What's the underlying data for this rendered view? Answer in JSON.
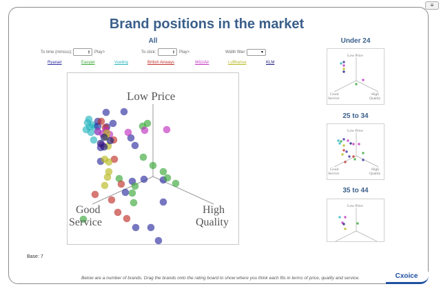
{
  "title": "Brand positions in the market",
  "all_label": "All",
  "controls": {
    "time_label": "To time (mmsss):",
    "click_label": "To click:",
    "play_label": "Play>",
    "width_label": "Width filter:"
  },
  "brands": [
    {
      "name": "Ryanair",
      "color": "#2e2ea0"
    },
    {
      "name": "Easyjet",
      "color": "#3aa83a"
    },
    {
      "name": "Vueling",
      "color": "#2ab5c0"
    },
    {
      "name": "British Airways",
      "color": "#c0302a"
    },
    {
      "name": "WizzAir",
      "color": "#c030c0"
    },
    {
      "name": "Lufthansa",
      "color": "#b8b820"
    },
    {
      "name": "KLM",
      "color": "#1a1a7a"
    }
  ],
  "axes": {
    "top": "Low Price",
    "left_line1": "Good",
    "left_line2": "Service",
    "right_line1": "High",
    "right_line2": "Quality"
  },
  "main_points": [
    {
      "b": 2,
      "x": -93,
      "y": -83
    },
    {
      "b": 2,
      "x": -95,
      "y": -78
    },
    {
      "b": 2,
      "x": -88,
      "y": -75
    },
    {
      "b": 2,
      "x": -97,
      "y": -68
    },
    {
      "b": 2,
      "x": -90,
      "y": -64
    },
    {
      "b": 2,
      "x": -84,
      "y": -72
    },
    {
      "b": 2,
      "x": -86,
      "y": -53
    },
    {
      "b": 2,
      "x": -80,
      "y": -65
    },
    {
      "b": 2,
      "x": -92,
      "y": -72
    },
    {
      "b": 0,
      "x": -68,
      "y": -93
    },
    {
      "b": 0,
      "x": -42,
      "y": -94
    },
    {
      "b": 0,
      "x": -80,
      "y": -80
    },
    {
      "b": 0,
      "x": -58,
      "y": -77
    },
    {
      "b": 0,
      "x": -67,
      "y": -72
    },
    {
      "b": 0,
      "x": -32,
      "y": -56
    },
    {
      "b": 0,
      "x": -26,
      "y": -45
    },
    {
      "b": 0,
      "x": -76,
      "y": -42
    },
    {
      "b": 0,
      "x": -13,
      "y": 4
    },
    {
      "b": 0,
      "x": -30,
      "y": 7
    },
    {
      "b": 0,
      "x": 15,
      "y": 5
    },
    {
      "b": 0,
      "x": -40,
      "y": 23
    },
    {
      "b": 0,
      "x": 15,
      "y": 37
    },
    {
      "b": 0,
      "x": -25,
      "y": 74
    },
    {
      "b": 0,
      "x": -3,
      "y": 74
    },
    {
      "b": 0,
      "x": 8,
      "y": 93
    },
    {
      "b": 0,
      "x": -76,
      "y": -22
    },
    {
      "b": 0,
      "x": -80,
      "y": -73
    },
    {
      "b": 1,
      "x": -8,
      "y": -77
    },
    {
      "b": 1,
      "x": -15,
      "y": -73
    },
    {
      "b": 1,
      "x": -14,
      "y": -28
    },
    {
      "b": 1,
      "x": 0,
      "y": -16
    },
    {
      "b": 1,
      "x": 15,
      "y": -7
    },
    {
      "b": 1,
      "x": 21,
      "y": 2
    },
    {
      "b": 1,
      "x": 33,
      "y": 10
    },
    {
      "b": 1,
      "x": -49,
      "y": 3
    },
    {
      "b": 1,
      "x": -30,
      "y": 24
    },
    {
      "b": 1,
      "x": -28,
      "y": 38
    },
    {
      "b": 1,
      "x": -101,
      "y": 62
    },
    {
      "b": 1,
      "x": -26,
      "y": 14
    },
    {
      "b": 3,
      "x": -69,
      "y": -71
    },
    {
      "b": 3,
      "x": -57,
      "y": -53
    },
    {
      "b": 3,
      "x": -56,
      "y": -25
    },
    {
      "b": 3,
      "x": -46,
      "y": 11
    },
    {
      "b": 3,
      "x": -84,
      "y": 26
    },
    {
      "b": 3,
      "x": -60,
      "y": 34
    },
    {
      "b": 3,
      "x": -51,
      "y": 52
    },
    {
      "b": 3,
      "x": -38,
      "y": 61
    },
    {
      "b": 3,
      "x": -75,
      "y": -80
    },
    {
      "b": 4,
      "x": -80,
      "y": -65
    },
    {
      "b": 4,
      "x": -68,
      "y": -67
    },
    {
      "b": 4,
      "x": -73,
      "y": -62
    },
    {
      "b": 4,
      "x": -36,
      "y": -64
    },
    {
      "b": 4,
      "x": -12,
      "y": -67
    },
    {
      "b": 4,
      "x": 20,
      "y": -68
    },
    {
      "b": 4,
      "x": -63,
      "y": -61
    },
    {
      "b": 4,
      "x": -74,
      "y": -46
    },
    {
      "b": 5,
      "x": -67,
      "y": -63
    },
    {
      "b": 5,
      "x": -65,
      "y": -44
    },
    {
      "b": 5,
      "x": -70,
      "y": -25
    },
    {
      "b": 5,
      "x": -64,
      "y": -21
    },
    {
      "b": 5,
      "x": -64,
      "y": -7
    },
    {
      "b": 5,
      "x": -66,
      "y": 1
    },
    {
      "b": 5,
      "x": -70,
      "y": 13
    },
    {
      "b": 5,
      "x": -68,
      "y": -57
    },
    {
      "b": 6,
      "x": -71,
      "y": -57
    },
    {
      "b": 6,
      "x": -76,
      "y": -48
    },
    {
      "b": 6,
      "x": -62,
      "y": -52
    },
    {
      "b": 6,
      "x": -71,
      "y": -43
    }
  ],
  "mini_charts": [
    {
      "title": "Under 24",
      "points": [
        {
          "b": 2,
          "x": -22,
          "y": -25
        },
        {
          "b": 0,
          "x": -18,
          "y": -27
        },
        {
          "b": 4,
          "x": -18,
          "y": -22
        },
        {
          "b": 5,
          "x": -18,
          "y": -17
        },
        {
          "b": 6,
          "x": -18,
          "y": -13
        },
        {
          "b": 4,
          "x": 10,
          "y": -1
        },
        {
          "b": 1,
          "x": 0,
          "y": 5
        }
      ]
    },
    {
      "title": "25 to 34",
      "points": [
        {
          "b": 2,
          "x": -26,
          "y": -22
        },
        {
          "b": 2,
          "x": -24,
          "y": -18
        },
        {
          "b": 0,
          "x": -18,
          "y": -24
        },
        {
          "b": 4,
          "x": -12,
          "y": -22
        },
        {
          "b": 6,
          "x": -8,
          "y": -18
        },
        {
          "b": 4,
          "x": -4,
          "y": -17
        },
        {
          "b": 4,
          "x": 4,
          "y": -17
        },
        {
          "b": 5,
          "x": -18,
          "y": -15
        },
        {
          "b": 3,
          "x": -18,
          "y": -8
        },
        {
          "b": 0,
          "x": -14,
          "y": -6
        },
        {
          "b": 5,
          "x": -20,
          "y": -2
        },
        {
          "b": 0,
          "x": -10,
          "y": 1
        },
        {
          "b": 3,
          "x": -4,
          "y": 1
        },
        {
          "b": 1,
          "x": 10,
          "y": -4
        },
        {
          "b": 1,
          "x": -2,
          "y": 5
        },
        {
          "b": 0,
          "x": 10,
          "y": 6
        },
        {
          "b": 3,
          "x": -16,
          "y": 9
        },
        {
          "b": 1,
          "x": -22,
          "y": -21
        }
      ]
    },
    {
      "title": "35 to 44",
      "points": [
        {
          "b": 2,
          "x": -24,
          "y": -20
        },
        {
          "b": 4,
          "x": -16,
          "y": -20
        },
        {
          "b": 4,
          "x": -20,
          "y": -12
        },
        {
          "b": 6,
          "x": -18,
          "y": -10
        },
        {
          "b": 5,
          "x": -16,
          "y": -3
        },
        {
          "b": 1,
          "x": 2,
          "y": -11
        }
      ]
    }
  ],
  "base": "Base: 7",
  "footer": "Below are a number of brands. Drag the brands onto the rating board to show where you think each fits in terms of price, quality and service.",
  "logo": "Cxoice",
  "menu_icon": "≡"
}
